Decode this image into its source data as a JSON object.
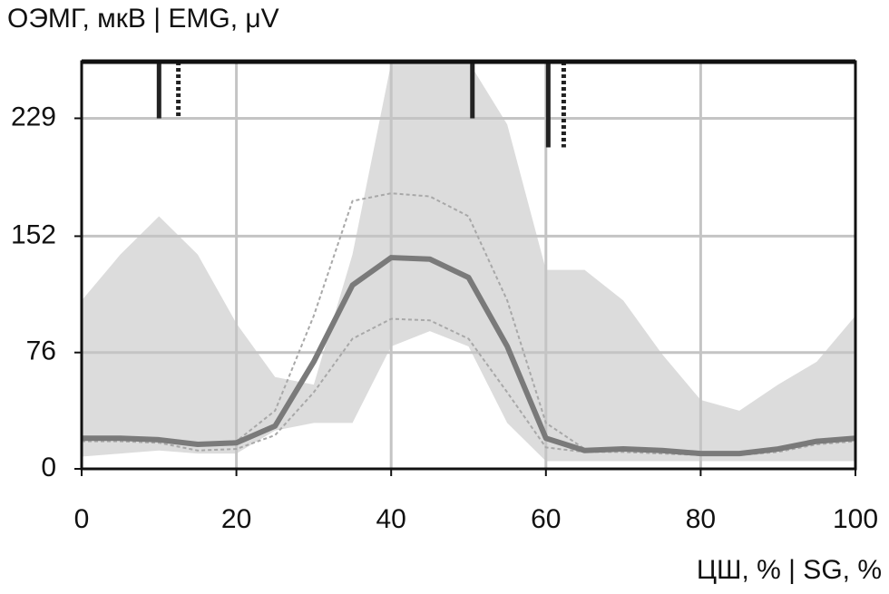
{
  "chart_data": {
    "type": "line",
    "title": "ОЭМГ, мкВ | EMG, μV",
    "x_label": "ЦШ, % | SG, %",
    "x": [
      0,
      5,
      10,
      15,
      20,
      25,
      30,
      35,
      40,
      45,
      50,
      55,
      60,
      65,
      70,
      75,
      80,
      85,
      90,
      95,
      100
    ],
    "band": {
      "color": "#dcdcdc",
      "upper": [
        110,
        140,
        165,
        140,
        95,
        60,
        55,
        140,
        265,
        266,
        266,
        225,
        130,
        130,
        110,
        75,
        45,
        38,
        55,
        70,
        100
      ],
      "lower": [
        8,
        10,
        12,
        10,
        10,
        25,
        30,
        30,
        80,
        90,
        80,
        30,
        5,
        5,
        5,
        5,
        5,
        5,
        5,
        5,
        5
      ]
    },
    "series": [
      {
        "color": "#a8a8a8",
        "width": 2,
        "dash": "4 3",
        "values": [
          20,
          20,
          19,
          16,
          18,
          38,
          100,
          175,
          180,
          178,
          165,
          110,
          30,
          13,
          13,
          12,
          10,
          10,
          13,
          18,
          20
        ]
      },
      {
        "color": "#a8a8a8",
        "width": 2,
        "dash": "4 3",
        "values": [
          18,
          18,
          17,
          12,
          13,
          22,
          50,
          85,
          98,
          97,
          85,
          50,
          14,
          11,
          11,
          10,
          9,
          9,
          11,
          16,
          18
        ]
      },
      {
        "color": "#7a7a7a",
        "width": 6,
        "dash": "none",
        "values": [
          20,
          20,
          19,
          16,
          17,
          28,
          70,
          120,
          138,
          137,
          125,
          80,
          20,
          12,
          13,
          12,
          10,
          10,
          13,
          18,
          20
        ]
      }
    ],
    "events": [
      {
        "x": 10,
        "y": 229,
        "dash": "none"
      },
      {
        "x": 12.5,
        "y": 229,
        "dash": "4 3"
      },
      {
        "x": 50.5,
        "y": 229,
        "dash": "none"
      },
      {
        "x": 60.3,
        "y": 210,
        "dash": "none"
      },
      {
        "x": 62.3,
        "y": 210,
        "dash": "4 3"
      }
    ],
    "event_color": "#222222",
    "xlim": [
      0,
      100
    ],
    "xticks": [
      0,
      20,
      40,
      60,
      80,
      100
    ],
    "ylim": [
      0,
      266
    ],
    "yticks": [
      0,
      76,
      152,
      229
    ],
    "grid": true
  }
}
